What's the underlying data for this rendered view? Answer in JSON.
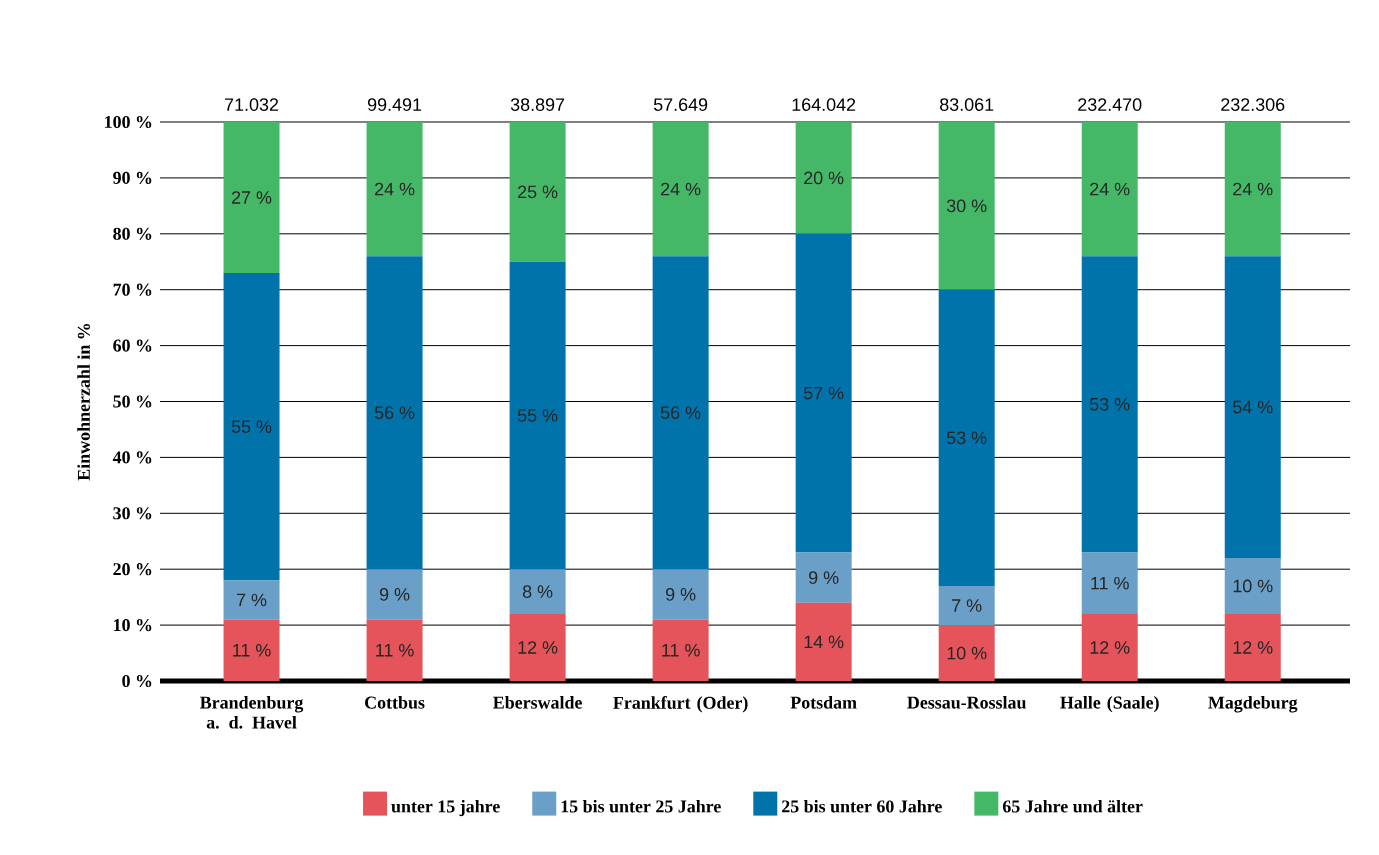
{
  "chart_data": {
    "type": "bar",
    "stacked": true,
    "ylabel": "Einwohnerzahl in %",
    "categories": [
      "Brandenburg a. d. Havel",
      "Cottbus",
      "Eberswalde",
      "Frankfurt (Oder)",
      "Potsdam",
      "Dessau-Rosslau",
      "Halle (Saale)",
      "Magdeburg"
    ],
    "series": [
      {
        "name": "unter 15 jahre",
        "color": "#e4545a",
        "values": [
          11,
          11,
          12,
          11,
          14,
          10,
          12,
          12
        ],
        "value_labels": [
          "11 %",
          "11 %",
          "12 %",
          "11 %",
          "14 %",
          "10 %",
          "12 %",
          "12 %"
        ]
      },
      {
        "name": "15 bis unter 25 Jahre",
        "color": "#6a9fc8",
        "values": [
          7,
          9,
          8,
          9,
          9,
          7,
          11,
          10
        ],
        "value_labels": [
          "7 %",
          "9 %",
          "8 %",
          "9 %",
          "9 %",
          "7 %",
          "11 %",
          "10 %"
        ]
      },
      {
        "name": "25 bis unter 60 Jahre",
        "color": "#0073ab",
        "values": [
          55,
          56,
          55,
          56,
          57,
          53,
          53,
          54
        ],
        "value_labels": [
          "55 %",
          "56 %",
          "55 %",
          "56 %",
          "57 %",
          "53 %",
          "53 %",
          "54 %"
        ]
      },
      {
        "name": "65 Jahre und älter",
        "color": "#45b868",
        "values": [
          27,
          24,
          25,
          24,
          20,
          30,
          24,
          24
        ],
        "value_labels": [
          "27 %",
          "24 %",
          "25 %",
          "24 %",
          "20 %",
          "30 %",
          "24 %",
          "24 %"
        ]
      }
    ],
    "annotations": [
      {
        "text": "71.032",
        "x": "Brandenburg a. d. Havel",
        "y": 100
      },
      {
        "text": "99.491",
        "x": "Cottbus",
        "y": 100
      },
      {
        "text": "38.897",
        "x": "Eberswalde",
        "y": 100
      },
      {
        "text": "57.649",
        "x": "Frankfurt (Oder)",
        "y": 100
      },
      {
        "text": "164.042",
        "x": "Potsdam",
        "y": 100
      },
      {
        "text": "83.061",
        "x": "Dessau-Rosslau",
        "y": 100
      },
      {
        "text": "232.470",
        "x": "Halle (Saale)",
        "y": 100
      },
      {
        "text": "232.306",
        "x": "Magdeburg",
        "y": 100
      }
    ],
    "ylim": [
      0,
      100
    ],
    "yticks": [
      {
        "value": 0,
        "label": "0 %"
      },
      {
        "value": 10,
        "label": "10 %"
      },
      {
        "value": 20,
        "label": "20 %"
      },
      {
        "value": 30,
        "label": "30 %"
      },
      {
        "value": 40,
        "label": "40 %"
      },
      {
        "value": 50,
        "label": "50 %"
      },
      {
        "value": 60,
        "label": "60 %"
      },
      {
        "value": 70,
        "label": "70 %"
      },
      {
        "value": 80,
        "label": "80 %"
      },
      {
        "value": 90,
        "label": "90 %"
      },
      {
        "value": 100,
        "label": "100 %"
      }
    ],
    "grid": "y",
    "legend": "bottom"
  }
}
